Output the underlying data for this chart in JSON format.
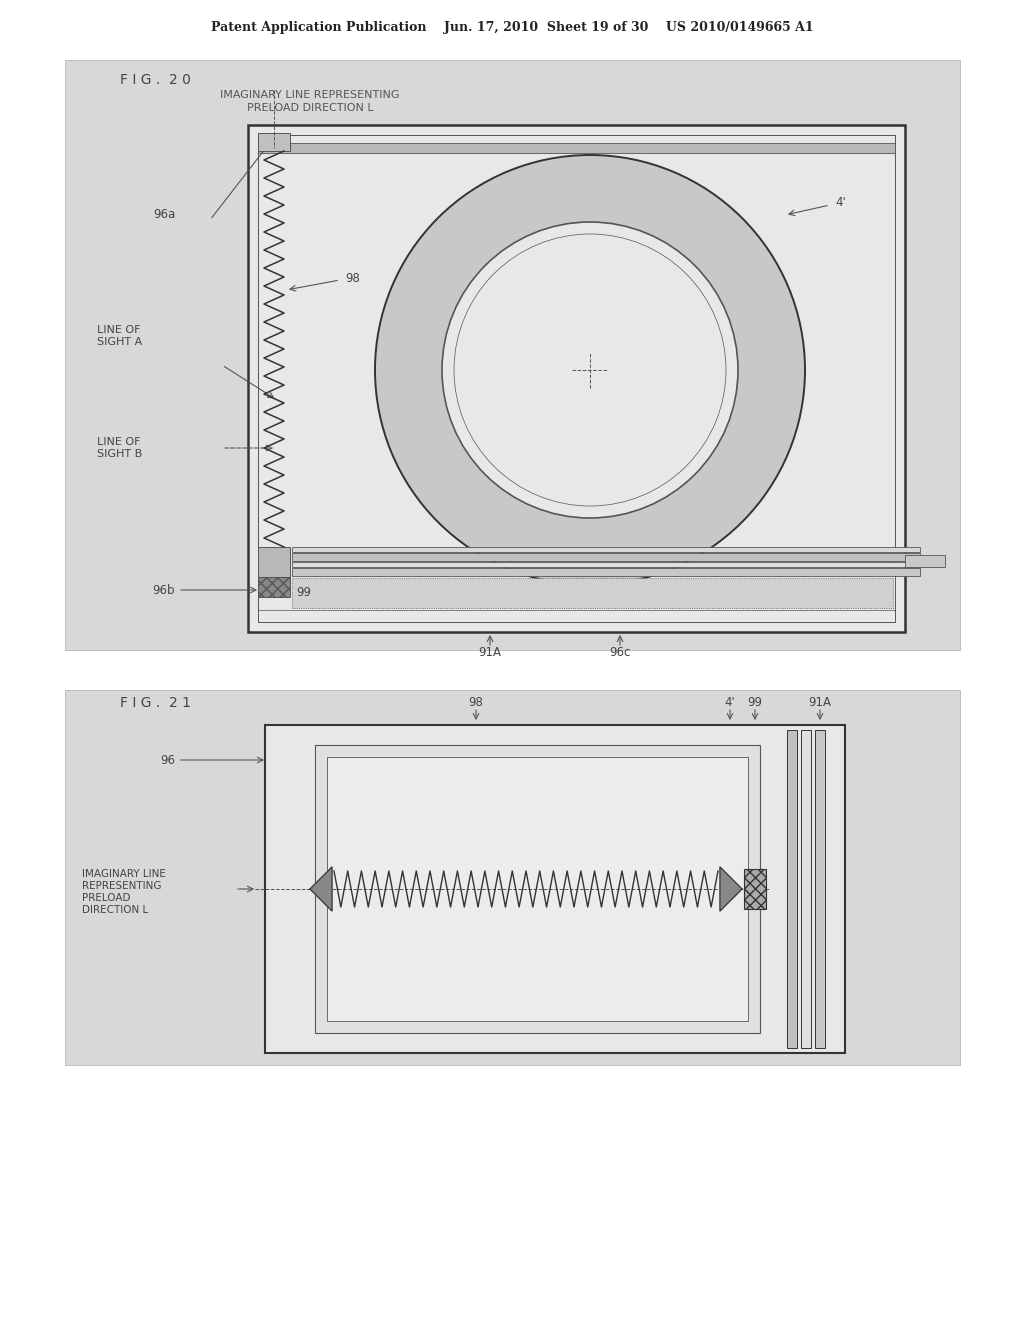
{
  "bg_color": "#d8d8d8",
  "panel_bg": "#e0e0e0",
  "page_bg": "#c8c8c8",
  "inner_bg": "#f0f0f0",
  "ring_color": "#c0c0c0",
  "line_color": "#555555",
  "dark_line": "#333333",
  "header_text": "Patent Application Publication    Jun. 17, 2010  Sheet 19 of 30    US 2010/0149665 A1",
  "fig20_label": "F I G .  2 0",
  "fig20_sub1": "IMAGINARY LINE REPRESENTING",
  "fig20_sub2": "PRELOAD DIRECTION L",
  "fig21_label": "F I G .  2 1",
  "label_96a": "96a",
  "label_96b": "96b",
  "label_96c": "96c",
  "label_98": "98",
  "label_4": "4'",
  "label_99": "99",
  "label_91A": "91A",
  "label_96": "96",
  "label_line_a1": "LINE OF",
  "label_line_a2": "SIGHT A",
  "label_line_b1": "LINE OF",
  "label_line_b2": "SIGHT B",
  "label_imaginary1": "IMAGINARY LINE",
  "label_imaginary2": "REPRESENTING",
  "label_imaginary3": "PRELOAD",
  "label_imaginary4": "DIRECTION L"
}
